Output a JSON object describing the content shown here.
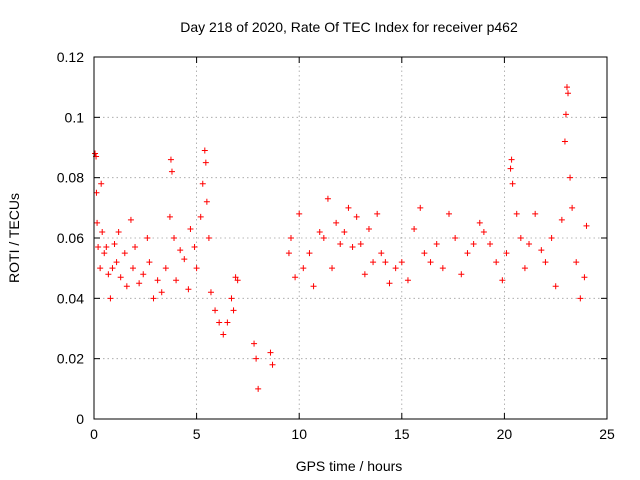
{
  "chart_data": {
    "type": "scatter",
    "title": "Day 218 of 2020, Rate Of TEC Index for receiver p462",
    "xlabel": "GPS time / hours",
    "ylabel": "ROTI / TECUs",
    "xlim": [
      0,
      25
    ],
    "ylim": [
      0,
      0.12
    ],
    "x_ticks": [
      0,
      5,
      10,
      15,
      20,
      25
    ],
    "x_tick_labels": [
      "0",
      "5",
      "10",
      "15",
      "20",
      "25"
    ],
    "y_ticks": [
      0,
      0.02,
      0.04,
      0.06,
      0.08,
      0.1,
      0.12
    ],
    "y_tick_labels": [
      "0",
      "0.02",
      "0.04",
      "0.06",
      "0.08",
      "0.1",
      "0.12"
    ],
    "grid": true,
    "marker": "+",
    "marker_color": "#ff0000",
    "series": [
      {
        "points": [
          [
            0.05,
            0.088
          ],
          [
            0.1,
            0.087
          ],
          [
            0.12,
            0.075
          ],
          [
            0.15,
            0.065
          ],
          [
            0.2,
            0.057
          ],
          [
            0.3,
            0.05
          ],
          [
            0.35,
            0.078
          ],
          [
            0.4,
            0.062
          ],
          [
            0.5,
            0.055
          ],
          [
            0.6,
            0.057
          ],
          [
            0.7,
            0.048
          ],
          [
            0.8,
            0.04
          ],
          [
            0.9,
            0.05
          ],
          [
            1.0,
            0.058
          ],
          [
            1.1,
            0.052
          ],
          [
            1.2,
            0.062
          ],
          [
            1.3,
            0.047
          ],
          [
            1.5,
            0.055
          ],
          [
            1.6,
            0.044
          ],
          [
            1.8,
            0.066
          ],
          [
            1.9,
            0.05
          ],
          [
            2.0,
            0.057
          ],
          [
            2.2,
            0.045
          ],
          [
            2.4,
            0.048
          ],
          [
            2.6,
            0.06
          ],
          [
            2.7,
            0.052
          ],
          [
            2.9,
            0.04
          ],
          [
            3.1,
            0.046
          ],
          [
            3.3,
            0.042
          ],
          [
            3.5,
            0.05
          ],
          [
            3.7,
            0.067
          ],
          [
            3.75,
            0.086
          ],
          [
            3.8,
            0.082
          ],
          [
            3.9,
            0.06
          ],
          [
            4.0,
            0.046
          ],
          [
            4.2,
            0.056
          ],
          [
            4.4,
            0.053
          ],
          [
            4.6,
            0.043
          ],
          [
            4.7,
            0.063
          ],
          [
            4.9,
            0.057
          ],
          [
            5.0,
            0.05
          ],
          [
            5.2,
            0.067
          ],
          [
            5.3,
            0.078
          ],
          [
            5.4,
            0.089
          ],
          [
            5.45,
            0.085
          ],
          [
            5.5,
            0.072
          ],
          [
            5.6,
            0.06
          ],
          [
            5.7,
            0.042
          ],
          [
            5.9,
            0.036
          ],
          [
            6.1,
            0.032
          ],
          [
            6.3,
            0.028
          ],
          [
            6.5,
            0.032
          ],
          [
            6.7,
            0.04
          ],
          [
            6.8,
            0.036
          ],
          [
            6.9,
            0.047
          ],
          [
            7.0,
            0.046
          ],
          [
            7.8,
            0.025
          ],
          [
            7.9,
            0.02
          ],
          [
            8.0,
            0.01
          ],
          [
            8.6,
            0.022
          ],
          [
            8.7,
            0.018
          ],
          [
            9.5,
            0.055
          ],
          [
            9.6,
            0.06
          ],
          [
            9.8,
            0.047
          ],
          [
            10.0,
            0.068
          ],
          [
            10.2,
            0.05
          ],
          [
            10.5,
            0.055
          ],
          [
            10.7,
            0.044
          ],
          [
            11.0,
            0.062
          ],
          [
            11.2,
            0.06
          ],
          [
            11.4,
            0.073
          ],
          [
            11.6,
            0.05
          ],
          [
            11.8,
            0.065
          ],
          [
            12.0,
            0.058
          ],
          [
            12.2,
            0.062
          ],
          [
            12.4,
            0.07
          ],
          [
            12.6,
            0.057
          ],
          [
            12.8,
            0.067
          ],
          [
            13.0,
            0.058
          ],
          [
            13.2,
            0.048
          ],
          [
            13.4,
            0.063
          ],
          [
            13.6,
            0.052
          ],
          [
            13.8,
            0.068
          ],
          [
            14.0,
            0.055
          ],
          [
            14.2,
            0.052
          ],
          [
            14.4,
            0.045
          ],
          [
            14.7,
            0.05
          ],
          [
            15.0,
            0.052
          ],
          [
            15.3,
            0.046
          ],
          [
            15.6,
            0.063
          ],
          [
            15.9,
            0.07
          ],
          [
            16.1,
            0.055
          ],
          [
            16.4,
            0.052
          ],
          [
            16.7,
            0.058
          ],
          [
            17.0,
            0.05
          ],
          [
            17.3,
            0.068
          ],
          [
            17.6,
            0.06
          ],
          [
            17.9,
            0.048
          ],
          [
            18.2,
            0.055
          ],
          [
            18.5,
            0.058
          ],
          [
            18.8,
            0.065
          ],
          [
            19.0,
            0.062
          ],
          [
            19.3,
            0.058
          ],
          [
            19.6,
            0.052
          ],
          [
            19.9,
            0.046
          ],
          [
            20.1,
            0.055
          ],
          [
            20.3,
            0.083
          ],
          [
            20.35,
            0.086
          ],
          [
            20.4,
            0.078
          ],
          [
            20.6,
            0.068
          ],
          [
            20.8,
            0.06
          ],
          [
            21.0,
            0.05
          ],
          [
            21.2,
            0.058
          ],
          [
            21.5,
            0.068
          ],
          [
            21.8,
            0.056
          ],
          [
            22.0,
            0.052
          ],
          [
            22.3,
            0.06
          ],
          [
            22.5,
            0.044
          ],
          [
            22.8,
            0.066
          ],
          [
            22.95,
            0.092
          ],
          [
            23.0,
            0.101
          ],
          [
            23.05,
            0.11
          ],
          [
            23.1,
            0.108
          ],
          [
            23.2,
            0.08
          ],
          [
            23.3,
            0.07
          ],
          [
            23.5,
            0.052
          ],
          [
            23.7,
            0.04
          ],
          [
            23.9,
            0.047
          ],
          [
            24.0,
            0.064
          ]
        ]
      }
    ]
  }
}
